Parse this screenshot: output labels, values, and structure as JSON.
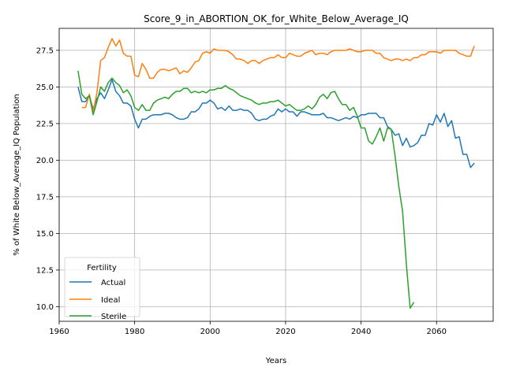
{
  "chart_data": {
    "type": "line",
    "title": "Score_9_in_ABORTION_OK_for_White_Below_Average_IQ",
    "xlabel": "Years",
    "ylabel": "% of White Below_Average_IQ Population",
    "xlim": [
      1960,
      2075
    ],
    "ylim": [
      9.0,
      29.0
    ],
    "xticks": [
      1960,
      1980,
      2000,
      2020,
      2040,
      2060
    ],
    "yticks": [
      10.0,
      12.5,
      15.0,
      17.5,
      20.0,
      22.5,
      25.0,
      27.5
    ],
    "xtick_labels": [
      "1960",
      "1980",
      "2000",
      "2020",
      "2040",
      "2060"
    ],
    "ytick_labels": [
      "10.0",
      "12.5",
      "15.0",
      "17.5",
      "20.0",
      "22.5",
      "25.0",
      "27.5"
    ],
    "grid": true,
    "legend": {
      "title": "Fertility",
      "position": "lower-left"
    },
    "series": [
      {
        "name": "Actual",
        "color": "#1f77b4",
        "points": [
          [
            1965,
            25.0
          ],
          [
            1966,
            24.0
          ],
          [
            1967,
            24.0
          ],
          [
            1968,
            24.4
          ],
          [
            1969,
            23.5
          ],
          [
            1970,
            24.2
          ],
          [
            1971,
            24.6
          ],
          [
            1972,
            24.2
          ],
          [
            1973,
            24.8
          ],
          [
            1974,
            25.5
          ],
          [
            1975,
            24.7
          ],
          [
            1976,
            24.4
          ],
          [
            1977,
            23.9
          ],
          [
            1978,
            23.9
          ],
          [
            1979,
            23.7
          ],
          [
            1980,
            22.8
          ],
          [
            1981,
            22.2
          ],
          [
            1982,
            22.8
          ],
          [
            1983,
            22.8
          ],
          [
            1984,
            23.0
          ],
          [
            1985,
            23.1
          ],
          [
            1986,
            23.1
          ],
          [
            1987,
            23.1
          ],
          [
            1988,
            23.2
          ],
          [
            1989,
            23.2
          ],
          [
            1990,
            23.1
          ],
          [
            1991,
            22.9
          ],
          [
            1992,
            22.8
          ],
          [
            1993,
            22.8
          ],
          [
            1994,
            22.9
          ],
          [
            1995,
            23.3
          ],
          [
            1996,
            23.3
          ],
          [
            1997,
            23.5
          ],
          [
            1998,
            23.9
          ],
          [
            1999,
            23.9
          ],
          [
            2000,
            24.1
          ],
          [
            2001,
            23.9
          ],
          [
            2002,
            23.5
          ],
          [
            2003,
            23.6
          ],
          [
            2004,
            23.4
          ],
          [
            2005,
            23.7
          ],
          [
            2006,
            23.4
          ],
          [
            2007,
            23.4
          ],
          [
            2008,
            23.5
          ],
          [
            2009,
            23.4
          ],
          [
            2010,
            23.4
          ],
          [
            2011,
            23.2
          ],
          [
            2012,
            22.8
          ],
          [
            2013,
            22.7
          ],
          [
            2014,
            22.8
          ],
          [
            2015,
            22.8
          ],
          [
            2016,
            23.0
          ],
          [
            2017,
            23.1
          ],
          [
            2018,
            23.5
          ],
          [
            2019,
            23.3
          ],
          [
            2020,
            23.5
          ],
          [
            2021,
            23.3
          ],
          [
            2022,
            23.3
          ],
          [
            2023,
            23.0
          ],
          [
            2024,
            23.3
          ],
          [
            2025,
            23.3
          ],
          [
            2026,
            23.2
          ],
          [
            2027,
            23.1
          ],
          [
            2028,
            23.1
          ],
          [
            2029,
            23.1
          ],
          [
            2030,
            23.2
          ],
          [
            2031,
            22.9
          ],
          [
            2032,
            22.9
          ],
          [
            2033,
            22.8
          ],
          [
            2034,
            22.7
          ],
          [
            2035,
            22.8
          ],
          [
            2036,
            22.9
          ],
          [
            2037,
            22.8
          ],
          [
            2038,
            23.0
          ],
          [
            2039,
            22.9
          ],
          [
            2040,
            23.1
          ],
          [
            2041,
            23.1
          ],
          [
            2042,
            23.2
          ],
          [
            2043,
            23.2
          ],
          [
            2044,
            23.2
          ],
          [
            2045,
            22.9
          ],
          [
            2046,
            22.9
          ],
          [
            2047,
            22.3
          ],
          [
            2048,
            22.1
          ],
          [
            2049,
            21.7
          ],
          [
            2050,
            21.8
          ],
          [
            2051,
            21.0
          ],
          [
            2052,
            21.5
          ],
          [
            2053,
            20.9
          ],
          [
            2054,
            21.0
          ],
          [
            2055,
            21.2
          ],
          [
            2056,
            21.7
          ],
          [
            2057,
            21.7
          ],
          [
            2058,
            22.5
          ],
          [
            2059,
            22.4
          ],
          [
            2060,
            23.1
          ],
          [
            2061,
            22.6
          ],
          [
            2062,
            23.2
          ],
          [
            2063,
            22.3
          ],
          [
            2064,
            22.7
          ],
          [
            2065,
            21.5
          ],
          [
            2066,
            21.6
          ],
          [
            2067,
            20.4
          ],
          [
            2068,
            20.4
          ],
          [
            2069,
            19.5
          ],
          [
            2070,
            19.8
          ]
        ]
      },
      {
        "name": "Ideal",
        "color": "#ff7f0e",
        "points": [
          [
            1966,
            23.6
          ],
          [
            1967,
            23.6
          ],
          [
            1968,
            24.5
          ],
          [
            1969,
            23.3
          ],
          [
            1970,
            24.6
          ],
          [
            1971,
            26.8
          ],
          [
            1972,
            27.0
          ],
          [
            1973,
            27.7
          ],
          [
            1974,
            28.3
          ],
          [
            1975,
            27.8
          ],
          [
            1976,
            28.2
          ],
          [
            1977,
            27.3
          ],
          [
            1978,
            27.1
          ],
          [
            1979,
            27.1
          ],
          [
            1980,
            25.8
          ],
          [
            1981,
            25.7
          ],
          [
            1982,
            26.6
          ],
          [
            1983,
            26.2
          ],
          [
            1984,
            25.6
          ],
          [
            1985,
            25.6
          ],
          [
            1986,
            26.0
          ],
          [
            1987,
            26.2
          ],
          [
            1988,
            26.2
          ],
          [
            1989,
            26.1
          ],
          [
            1990,
            26.2
          ],
          [
            1991,
            26.3
          ],
          [
            1992,
            25.9
          ],
          [
            1993,
            26.1
          ],
          [
            1994,
            26.0
          ],
          [
            1995,
            26.3
          ],
          [
            1996,
            26.7
          ],
          [
            1997,
            26.8
          ],
          [
            1998,
            27.3
          ],
          [
            1999,
            27.4
          ],
          [
            2000,
            27.3
          ],
          [
            2001,
            27.6
          ],
          [
            2002,
            27.5
          ],
          [
            2003,
            27.5
          ],
          [
            2004,
            27.5
          ],
          [
            2005,
            27.4
          ],
          [
            2006,
            27.2
          ],
          [
            2007,
            26.9
          ],
          [
            2008,
            26.9
          ],
          [
            2009,
            26.8
          ],
          [
            2010,
            26.6
          ],
          [
            2011,
            26.8
          ],
          [
            2012,
            26.8
          ],
          [
            2013,
            26.6
          ],
          [
            2014,
            26.8
          ],
          [
            2015,
            26.9
          ],
          [
            2016,
            27.0
          ],
          [
            2017,
            27.0
          ],
          [
            2018,
            27.2
          ],
          [
            2019,
            27.0
          ],
          [
            2020,
            27.0
          ],
          [
            2021,
            27.3
          ],
          [
            2022,
            27.2
          ],
          [
            2023,
            27.1
          ],
          [
            2024,
            27.1
          ],
          [
            2025,
            27.3
          ],
          [
            2026,
            27.4
          ],
          [
            2027,
            27.5
          ],
          [
            2028,
            27.2
          ],
          [
            2029,
            27.3
          ],
          [
            2030,
            27.3
          ],
          [
            2031,
            27.2
          ],
          [
            2032,
            27.4
          ],
          [
            2033,
            27.5
          ],
          [
            2034,
            27.5
          ],
          [
            2035,
            27.5
          ],
          [
            2036,
            27.5
          ],
          [
            2037,
            27.6
          ],
          [
            2038,
            27.5
          ],
          [
            2039,
            27.4
          ],
          [
            2040,
            27.4
          ],
          [
            2041,
            27.5
          ],
          [
            2042,
            27.5
          ],
          [
            2043,
            27.5
          ],
          [
            2044,
            27.3
          ],
          [
            2045,
            27.3
          ],
          [
            2046,
            27.0
          ],
          [
            2047,
            26.9
          ],
          [
            2048,
            26.8
          ],
          [
            2049,
            26.9
          ],
          [
            2050,
            26.9
          ],
          [
            2051,
            26.8
          ],
          [
            2052,
            26.9
          ],
          [
            2053,
            26.8
          ],
          [
            2054,
            27.0
          ],
          [
            2055,
            27.0
          ],
          [
            2056,
            27.2
          ],
          [
            2057,
            27.2
          ],
          [
            2058,
            27.4
          ],
          [
            2059,
            27.4
          ],
          [
            2060,
            27.4
          ],
          [
            2061,
            27.3
          ],
          [
            2062,
            27.5
          ],
          [
            2063,
            27.5
          ],
          [
            2064,
            27.5
          ],
          [
            2065,
            27.5
          ],
          [
            2066,
            27.3
          ],
          [
            2067,
            27.2
          ],
          [
            2068,
            27.1
          ],
          [
            2069,
            27.1
          ],
          [
            2070,
            27.8
          ]
        ]
      },
      {
        "name": "Sterile",
        "color": "#2ca02c",
        "points": [
          [
            1965,
            26.1
          ],
          [
            1966,
            24.5
          ],
          [
            1967,
            24.2
          ],
          [
            1968,
            24.4
          ],
          [
            1969,
            23.1
          ],
          [
            1970,
            24.0
          ],
          [
            1971,
            25.0
          ],
          [
            1972,
            24.7
          ],
          [
            1973,
            25.3
          ],
          [
            1974,
            25.6
          ],
          [
            1975,
            25.3
          ],
          [
            1976,
            25.1
          ],
          [
            1977,
            24.6
          ],
          [
            1978,
            24.8
          ],
          [
            1979,
            24.4
          ],
          [
            1980,
            23.6
          ],
          [
            1981,
            23.4
          ],
          [
            1982,
            23.8
          ],
          [
            1983,
            23.4
          ],
          [
            1984,
            23.4
          ],
          [
            1985,
            23.9
          ],
          [
            1986,
            24.1
          ],
          [
            1987,
            24.2
          ],
          [
            1988,
            24.3
          ],
          [
            1989,
            24.2
          ],
          [
            1990,
            24.5
          ],
          [
            1991,
            24.7
          ],
          [
            1992,
            24.7
          ],
          [
            1993,
            24.9
          ],
          [
            1994,
            24.9
          ],
          [
            1995,
            24.6
          ],
          [
            1996,
            24.7
          ],
          [
            1997,
            24.6
          ],
          [
            1998,
            24.7
          ],
          [
            1999,
            24.6
          ],
          [
            2000,
            24.8
          ],
          [
            2001,
            24.8
          ],
          [
            2002,
            24.9
          ],
          [
            2003,
            24.9
          ],
          [
            2004,
            25.1
          ],
          [
            2005,
            24.9
          ],
          [
            2006,
            24.8
          ],
          [
            2007,
            24.6
          ],
          [
            2008,
            24.4
          ],
          [
            2009,
            24.3
          ],
          [
            2010,
            24.2
          ],
          [
            2011,
            24.1
          ],
          [
            2012,
            23.9
          ],
          [
            2013,
            23.8
          ],
          [
            2014,
            23.9
          ],
          [
            2015,
            23.9
          ],
          [
            2016,
            24.0
          ],
          [
            2017,
            24.0
          ],
          [
            2018,
            24.1
          ],
          [
            2019,
            23.9
          ],
          [
            2020,
            23.7
          ],
          [
            2021,
            23.8
          ],
          [
            2022,
            23.6
          ],
          [
            2023,
            23.4
          ],
          [
            2024,
            23.4
          ],
          [
            2025,
            23.5
          ],
          [
            2026,
            23.7
          ],
          [
            2027,
            23.5
          ],
          [
            2028,
            23.8
          ],
          [
            2029,
            24.3
          ],
          [
            2030,
            24.5
          ],
          [
            2031,
            24.2
          ],
          [
            2032,
            24.6
          ],
          [
            2033,
            24.7
          ],
          [
            2034,
            24.2
          ],
          [
            2035,
            23.8
          ],
          [
            2036,
            23.8
          ],
          [
            2037,
            23.4
          ],
          [
            2038,
            23.6
          ],
          [
            2039,
            23.0
          ],
          [
            2040,
            22.2
          ],
          [
            2041,
            22.2
          ],
          [
            2042,
            21.3
          ],
          [
            2043,
            21.1
          ],
          [
            2044,
            21.6
          ],
          [
            2045,
            22.2
          ],
          [
            2046,
            21.3
          ],
          [
            2047,
            22.2
          ],
          [
            2048,
            22.1
          ],
          [
            2049,
            20.3
          ],
          [
            2050,
            18.2
          ],
          [
            2051,
            16.5
          ],
          [
            2052,
            12.9
          ],
          [
            2053,
            9.9
          ],
          [
            2054,
            10.3
          ]
        ]
      }
    ]
  }
}
